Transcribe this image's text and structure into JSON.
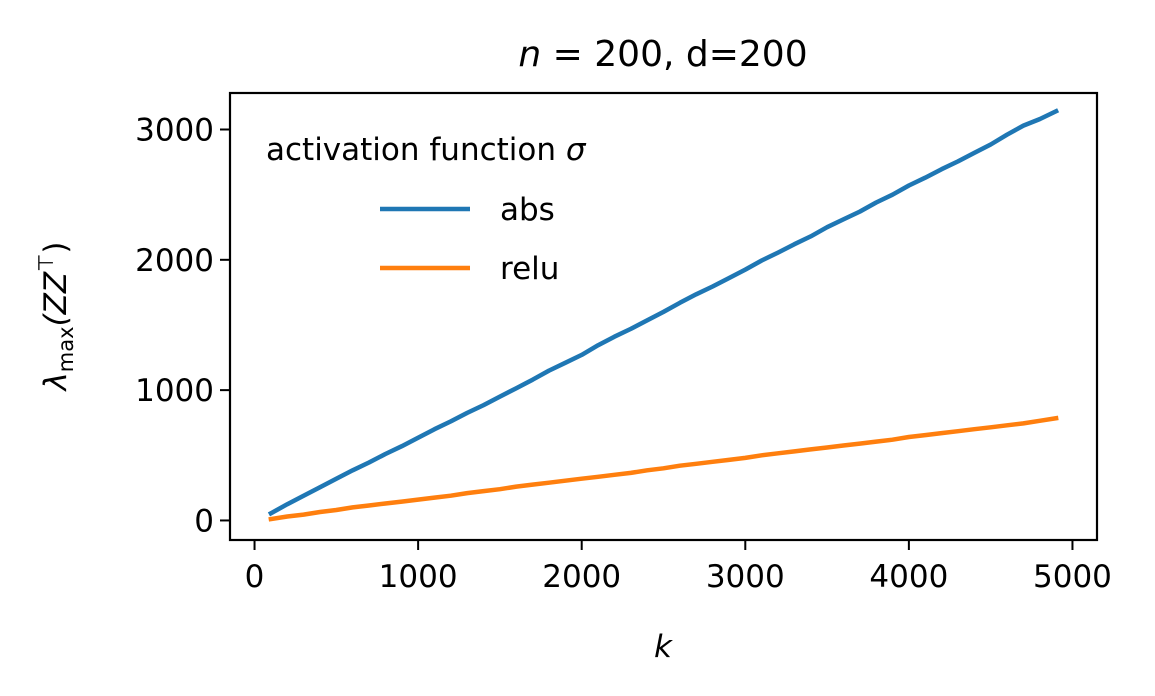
{
  "chart_data": {
    "type": "line",
    "title": {
      "var": "n",
      "eq": " = 200, d=200"
    },
    "xlabel": "k",
    "ylabel": {
      "base": "λ",
      "sub": "max",
      "arg": "(ZZ",
      "sup": "⊤",
      "close": ")"
    },
    "xlim": [
      -150,
      5150
    ],
    "ylim": [
      -150,
      3280
    ],
    "xticks": [
      0,
      1000,
      2000,
      3000,
      4000,
      5000
    ],
    "xtick_labels": [
      "0",
      "1000",
      "2000",
      "3000",
      "4000",
      "5000"
    ],
    "yticks": [
      0,
      1000,
      2000,
      3000
    ],
    "ytick_labels": [
      "0",
      "1000",
      "2000",
      "3000"
    ],
    "grid": false,
    "legend": {
      "title_text": "activation function ",
      "title_symbol": "σ",
      "placement": "top-left"
    },
    "series": [
      {
        "name": "abs",
        "color": "#1f77b4",
        "x": [
          100,
          200,
          300,
          400,
          500,
          600,
          700,
          800,
          900,
          1000,
          1100,
          1200,
          1300,
          1400,
          1500,
          1600,
          1700,
          1800,
          1900,
          2000,
          2100,
          2200,
          2300,
          2400,
          2500,
          2600,
          2700,
          2800,
          2900,
          3000,
          3100,
          3200,
          3300,
          3400,
          3500,
          3600,
          3700,
          3800,
          3900,
          4000,
          4100,
          4200,
          4300,
          4400,
          4500,
          4600,
          4700,
          4800,
          4900
        ],
        "y": [
          55,
          125,
          190,
          255,
          320,
          385,
          445,
          510,
          570,
          635,
          700,
          760,
          825,
          885,
          950,
          1015,
          1080,
          1150,
          1210,
          1270,
          1345,
          1410,
          1470,
          1535,
          1600,
          1670,
          1735,
          1795,
          1860,
          1925,
          1995,
          2055,
          2120,
          2180,
          2250,
          2310,
          2370,
          2440,
          2500,
          2570,
          2630,
          2695,
          2755,
          2820,
          2885,
          2960,
          3030,
          3080,
          3140
        ]
      },
      {
        "name": "relu",
        "color": "#ff7f0e",
        "x": [
          100,
          200,
          300,
          400,
          500,
          600,
          700,
          800,
          900,
          1000,
          1100,
          1200,
          1300,
          1400,
          1500,
          1600,
          1700,
          1800,
          1900,
          2000,
          2100,
          2200,
          2300,
          2400,
          2500,
          2600,
          2700,
          2800,
          2900,
          3000,
          3100,
          3200,
          3300,
          3400,
          3500,
          3600,
          3700,
          3800,
          3900,
          4000,
          4100,
          4200,
          4300,
          4400,
          4500,
          4600,
          4700,
          4800,
          4900
        ],
        "y": [
          10,
          30,
          45,
          65,
          80,
          100,
          115,
          130,
          145,
          160,
          175,
          190,
          210,
          225,
          240,
          260,
          275,
          290,
          305,
          320,
          335,
          350,
          365,
          385,
          400,
          420,
          435,
          450,
          465,
          480,
          500,
          515,
          530,
          545,
          560,
          575,
          590,
          605,
          620,
          640,
          655,
          670,
          685,
          700,
          715,
          730,
          745,
          765,
          785
        ]
      }
    ]
  }
}
